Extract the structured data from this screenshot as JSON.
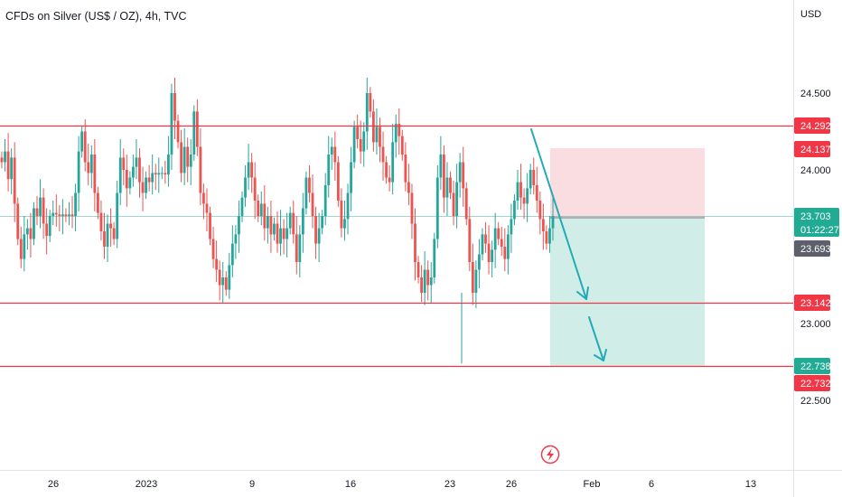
{
  "header": {
    "title": "CFDs on Silver (US$ / OZ), 4h, TVC"
  },
  "axis": {
    "currency": "USD",
    "price_ticks": [
      "24.500",
      "24.000",
      "23.000",
      "22.500"
    ],
    "time_ticks": [
      "26",
      "2023",
      "9",
      "16",
      "23",
      "26",
      "Feb",
      "6",
      "13"
    ]
  },
  "colors": {
    "up": "#26a69a",
    "down": "#ef5350",
    "level": "#f23645",
    "stop_zone": "#f8d7da",
    "target_zone": "#cfece6",
    "arrow": "#22abb6",
    "badge_red": "#f23645",
    "badge_green": "#22ab94",
    "badge_dark": "#5d606b"
  },
  "levels": [
    "24.292",
    "23.142",
    "22.738"
  ],
  "price_badges": [
    {
      "label": "24.292",
      "style": "red"
    },
    {
      "label": "24.137",
      "style": "red"
    },
    {
      "label": "23.703",
      "sub": "01:22:27",
      "style": "green"
    },
    {
      "label": "23.693",
      "style": "dark"
    },
    {
      "label": "23.142",
      "style": "red"
    },
    {
      "label": "22.738",
      "style": "green"
    },
    {
      "label": "22.732",
      "style": "red"
    }
  ],
  "event_icon": "lightning-bolt-icon",
  "chart_data": {
    "type": "candlestick",
    "symbol": "Silver (US$/OZ)",
    "interval": "4h",
    "y_range": [
      22.25,
      25.35
    ],
    "horizontal_levels": [
      24.292,
      23.142,
      22.738
    ],
    "position": {
      "type": "short",
      "entry": 23.703,
      "stop": 24.137,
      "target": 22.738
    },
    "last_price": 23.703,
    "countdown": "01:22:27",
    "price_line": 23.693,
    "closes": [
      24.05,
      24.12,
      23.94,
      24.08,
      23.78,
      23.55,
      23.42,
      23.58,
      23.62,
      23.55,
      23.75,
      23.7,
      23.82,
      23.65,
      23.57,
      23.7,
      23.72,
      23.71,
      23.7,
      23.71,
      23.7,
      23.71,
      23.7,
      23.85,
      24.12,
      24.25,
      24.05,
      23.98,
      24.1,
      23.85,
      23.72,
      23.6,
      23.5,
      23.65,
      23.62,
      23.55,
      23.85,
      24.08,
      24.0,
      23.88,
      23.95,
      24.02,
      24.08,
      23.92,
      23.85,
      23.95,
      23.92,
      23.98,
      23.97,
      23.98,
      23.98,
      23.97,
      24.1,
      24.5,
      24.32,
      24.18,
      23.98,
      24.15,
      24.02,
      24.1,
      24.38,
      24.15,
      23.85,
      23.78,
      23.72,
      23.55,
      23.42,
      23.35,
      23.25,
      23.3,
      23.22,
      23.38,
      23.52,
      23.58,
      23.7,
      23.82,
      23.95,
      24.05,
      23.95,
      23.8,
      23.7,
      23.78,
      23.62,
      23.7,
      23.58,
      23.65,
      23.52,
      23.62,
      23.55,
      23.62,
      23.72,
      23.58,
      23.4,
      23.58,
      23.75,
      23.95,
      23.85,
      23.7,
      23.52,
      23.62,
      23.7,
      23.9,
      24.1,
      24.15,
      24.05,
      23.8,
      23.62,
      23.68,
      23.85,
      24.05,
      24.28,
      24.2,
      24.12,
      24.25,
      24.5,
      24.38,
      24.18,
      24.28,
      24.15,
      24.05,
      23.95,
      23.92,
      24.18,
      24.3,
      24.22,
      24.1,
      23.92,
      23.85,
      23.65,
      23.4,
      23.3,
      23.2,
      23.35,
      23.25,
      23.3,
      23.55,
      23.95,
      24.1,
      23.82,
      23.95,
      23.85,
      23.7,
      23.92,
      24.05,
      23.88,
      23.68,
      23.4,
      23.2,
      23.35,
      23.45,
      23.58,
      23.52,
      23.4,
      23.48,
      23.62,
      23.55,
      23.5,
      23.42,
      23.58,
      23.68,
      23.8,
      23.92,
      23.82,
      23.78,
      23.88,
      24.0,
      23.9,
      23.8,
      23.68,
      23.6,
      23.52,
      23.62,
      23.7
    ]
  }
}
